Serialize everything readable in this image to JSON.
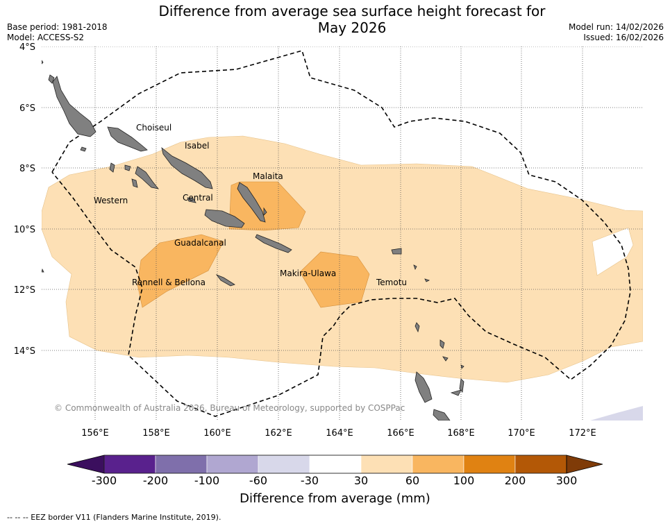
{
  "header": {
    "title_line1": "Difference from average sea surface height forecast for",
    "title_line2": "May 2026",
    "base_period": "Base period: 1981-2018",
    "model": "Model: ACCESS-S2",
    "model_run": "Model run: 14/02/2026",
    "issued": "Issued: 16/02/2026"
  },
  "map": {
    "lat_labels": [
      "4°S",
      "6°S",
      "8°S",
      "10°S",
      "12°S",
      "14°S"
    ],
    "lon_labels": [
      "156°E",
      "158°E",
      "160°E",
      "162°E",
      "164°E",
      "166°E",
      "168°E",
      "170°E",
      "172°E"
    ],
    "provinces": [
      "Choiseul",
      "Isabel",
      "Malaita",
      "Western",
      "Central",
      "Guadalcanal",
      "Makira-Ulawa",
      "Rennell & Bellona",
      "Temotu"
    ],
    "copyright": "© Commonwealth of Australia 2026, Bureau of Meteorology, supported by COSPPac",
    "colors": {
      "ocean": "#ffffff",
      "land": "#808080",
      "category_30_60": "#fde0b5",
      "category_60_100": "#f9b660",
      "category_neg60_neg30": "#d8d8ea"
    }
  },
  "colorbar": {
    "ticks": [
      "-300",
      "-200",
      "-100",
      "-60",
      "-30",
      "30",
      "60",
      "100",
      "200",
      "300"
    ],
    "colors": [
      "#3b0f5e",
      "#59218d",
      "#7f6fab",
      "#b0a7d1",
      "#d8d8ea",
      "#ffffff",
      "#fde0b5",
      "#f9b660",
      "#e08212",
      "#b35806",
      "#7f3b08"
    ],
    "title": "Difference from average (mm)"
  },
  "footer": {
    "legend": "--  --  -- EEZ border V11 (Flanders Marine Institute, 2019)."
  }
}
